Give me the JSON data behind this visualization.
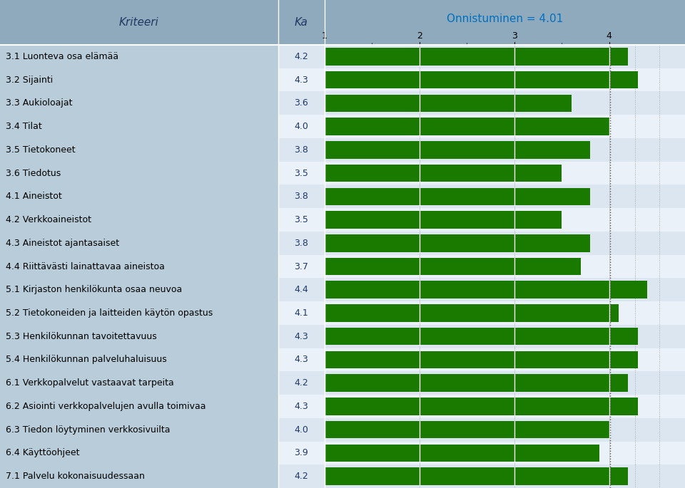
{
  "title": "Onnistuminen = 4.01",
  "col1_header": "Kriteeri",
  "col2_header": "Ka",
  "categories": [
    "3.1 Luonteva osa elämää",
    "3.2 Sijainti",
    "3.3 Aukioloajat",
    "3.4 Tilat",
    "3.5 Tietokoneet",
    "3.6 Tiedotus",
    "4.1 Aineistot",
    "4.2 Verkkoaineistot",
    "4.3 Aineistot ajantasaiset",
    "4.4 Riittävästi lainattavaa aineistoa",
    "5.1 Kirjaston henkilökunta osaa neuvoa",
    "5.2 Tietokoneiden ja laitteiden käytön opastus",
    "5.3 Henkilökunnan tavoitettavuus",
    "5.4 Henkilökunnan palveluhaluisuus",
    "6.1 Verkkopalvelut vastaavat tarpeita",
    "6.2 Asiointi verkkopalvelujen avulla toimivaa",
    "6.3 Tiedon löytyminen verkkosivuilta",
    "6.4 Käyttöohjeet",
    "7.1 Palvelu kokonaisuudessaan"
  ],
  "values": [
    4.2,
    4.3,
    3.6,
    4.0,
    3.8,
    3.5,
    3.8,
    3.5,
    3.8,
    3.7,
    4.4,
    4.1,
    4.3,
    4.3,
    4.2,
    4.3,
    4.0,
    3.9,
    4.2
  ],
  "bar_color": "#1a7a00",
  "reference_line": 4.01,
  "xmin": 1.0,
  "xmax": 4.8,
  "xticks": [
    1,
    2,
    3,
    4
  ],
  "header_bg": "#8faabc",
  "row_bg_odd": "#dce6f1",
  "row_bg_even": "#eaf1f8",
  "left_col_bg": "#b8cdd9",
  "header_text_color": "#1f3864",
  "title_color": "#0070c0",
  "title_fontsize": 11,
  "label_fontsize": 9,
  "ka_fontsize": 9,
  "tick_fontsize": 9
}
